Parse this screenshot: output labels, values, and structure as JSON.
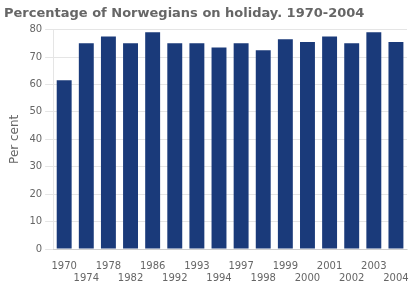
{
  "chart_data": {
    "type": "bar",
    "title": "Percentage of Norwegians on holiday. 1970-2004",
    "ylabel": "Per cent",
    "categories": [
      "1970",
      "1974",
      "1978",
      "1982",
      "1986",
      "1992",
      "1993",
      "1994",
      "1997",
      "1998",
      "1999",
      "2000",
      "2001",
      "2002",
      "2003",
      "2004"
    ],
    "values": [
      61.5,
      75.0,
      77.5,
      75.0,
      79.0,
      75.0,
      75.0,
      73.5,
      75.0,
      72.5,
      76.5,
      75.5,
      77.5,
      75.0,
      79.0,
      75.5
    ],
    "color": "#1a3a7a",
    "ylim": [
      0,
      80
    ],
    "yticks": [
      0,
      10,
      20,
      30,
      40,
      50,
      60,
      70,
      80
    ],
    "grid": true
  }
}
